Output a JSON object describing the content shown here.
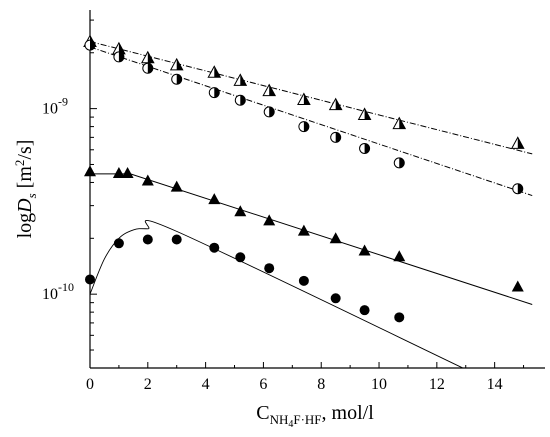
{
  "chart_data": {
    "type": "scatter",
    "title": "",
    "xlabel": {
      "base": "C",
      "sub_main": "NH",
      "sub_4": "4",
      "sub_rest": "F·HF",
      "tail": ", mol/l"
    },
    "ylabel": {
      "prefix": "log",
      "var": "D",
      "sub": "s",
      "unit_open": " [m",
      "unit_sup": "2",
      "unit_close": "/s]"
    },
    "xlim": [
      0,
      15.5
    ],
    "ylim": [
      4e-11,
      3.4e-09
    ],
    "yscale": "log",
    "x_ticks": [
      "0",
      "2",
      "4",
      "6",
      "8",
      "10",
      "12",
      "14"
    ],
    "y_ticks": [
      {
        "base": "10",
        "exp": "-9",
        "value": 1e-09
      },
      {
        "base": "10",
        "exp": "-10",
        "value": 1e-10
      }
    ],
    "grid": false,
    "legend": "none",
    "series": [
      {
        "marker": "half-triangle",
        "points": [
          [
            0,
            2.3e-09
          ],
          [
            1.0,
            2.1e-09
          ],
          [
            2.0,
            1.88e-09
          ],
          [
            3.0,
            1.72e-09
          ],
          [
            4.3,
            1.57e-09
          ],
          [
            5.2,
            1.42e-09
          ],
          [
            6.2,
            1.25e-09
          ],
          [
            7.4,
            1.12e-09
          ],
          [
            8.5,
            1.05e-09
          ],
          [
            9.5,
            9.3e-10
          ],
          [
            10.7,
            8.3e-10
          ],
          [
            14.8,
            6.5e-10
          ]
        ],
        "fit": {
          "style": "dash-dot",
          "points": [
            [
              0,
              2.3e-09
            ],
            [
              15.3,
              5.7e-10
            ]
          ]
        }
      },
      {
        "marker": "half-circle",
        "points": [
          [
            0,
            2.2e-09
          ],
          [
            1.0,
            1.9e-09
          ],
          [
            2.0,
            1.65e-09
          ],
          [
            3.0,
            1.44e-09
          ],
          [
            4.3,
            1.22e-09
          ],
          [
            5.2,
            1.11e-09
          ],
          [
            6.2,
            9.6e-10
          ],
          [
            7.4,
            8e-10
          ],
          [
            8.5,
            7e-10
          ],
          [
            9.5,
            6.1e-10
          ],
          [
            10.7,
            5.1e-10
          ],
          [
            14.8,
            3.7e-10
          ]
        ],
        "fit": {
          "style": "dash-dot",
          "points": [
            [
              0,
              2.15e-09
            ],
            [
              15.3,
              3.4e-10
            ]
          ]
        }
      },
      {
        "marker": "filled-triangle",
        "points": [
          [
            0,
            4.6e-10
          ],
          [
            1.0,
            4.5e-10
          ],
          [
            1.3,
            4.5e-10
          ],
          [
            2.0,
            4.1e-10
          ],
          [
            3.0,
            3.8e-10
          ],
          [
            4.3,
            3.25e-10
          ],
          [
            5.2,
            2.8e-10
          ],
          [
            6.2,
            2.5e-10
          ],
          [
            7.4,
            2.2e-10
          ],
          [
            8.5,
            2e-10
          ],
          [
            9.5,
            1.72e-10
          ],
          [
            10.7,
            1.6e-10
          ],
          [
            14.8,
            1.1e-10
          ]
        ],
        "fit": {
          "style": "solid",
          "points": [
            [
              0,
              4.45e-10
            ],
            [
              1.4,
              4.45e-10
            ],
            [
              15.3,
              8.8e-11
            ]
          ]
        }
      },
      {
        "marker": "filled-circle",
        "points": [
          [
            0,
            1.2e-10
          ],
          [
            1.0,
            1.88e-10
          ],
          [
            2.0,
            1.97e-10
          ],
          [
            3.0,
            1.97e-10
          ],
          [
            4.3,
            1.78e-10
          ],
          [
            5.2,
            1.58e-10
          ],
          [
            6.2,
            1.38e-10
          ],
          [
            7.4,
            1.18e-10
          ],
          [
            8.5,
            9.5e-11
          ],
          [
            9.5,
            8.2e-11
          ],
          [
            10.7,
            7.5e-11
          ]
        ],
        "fit": {
          "style": "solid-thin",
          "points": [
            [
              0,
              1e-10
            ],
            [
              0.5,
              1.55e-10
            ],
            [
              1.0,
              2e-10
            ],
            [
              1.5,
              2.22e-10
            ],
            [
              2.0,
              2.25e-10
            ],
            [
              3.0,
              2.18e-10
            ],
            [
              12.9,
              4e-11
            ]
          ]
        }
      }
    ]
  }
}
